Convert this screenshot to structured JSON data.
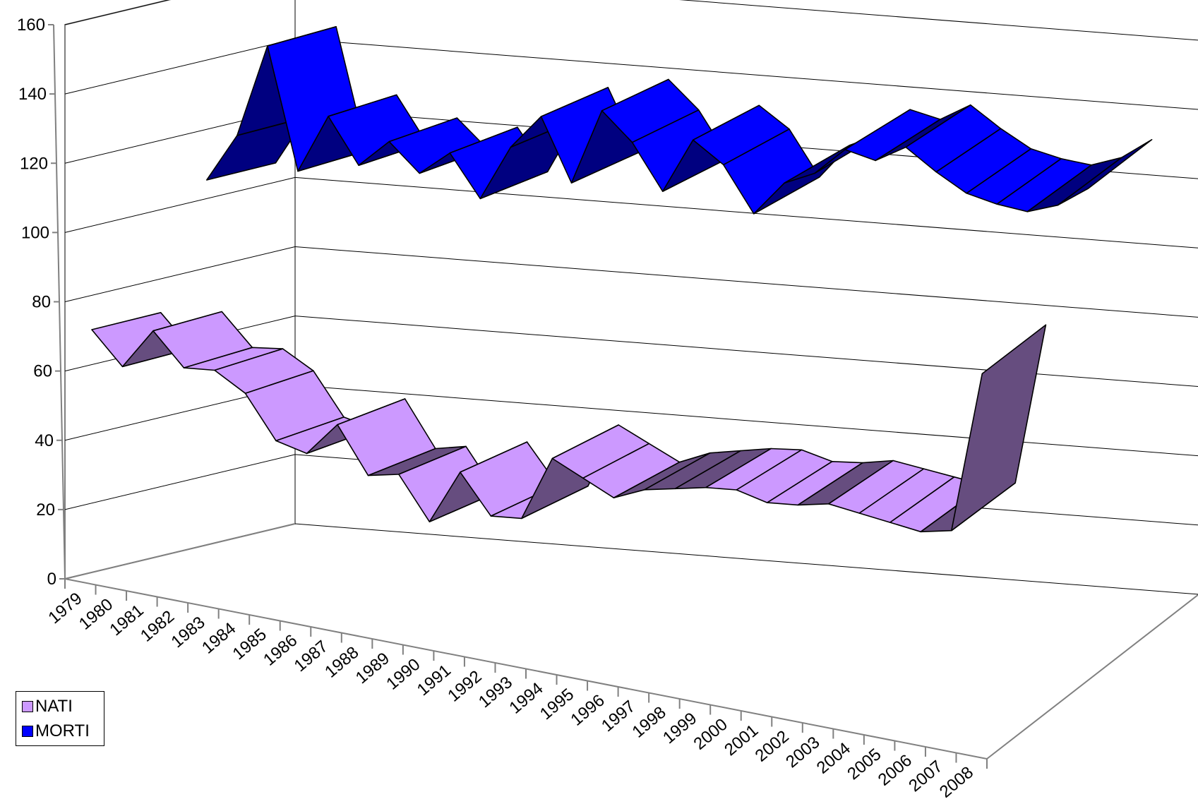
{
  "chart_data": {
    "type": "area",
    "style": "3d-ribbon-line",
    "title": "",
    "xlabel": "",
    "ylabel": "",
    "categories": [
      "1979",
      "1980",
      "1981",
      "1982",
      "1983",
      "1984",
      "1985",
      "1986",
      "1987",
      "1988",
      "1989",
      "1990",
      "1991",
      "1992",
      "1993",
      "1994",
      "1995",
      "1996",
      "1997",
      "1998",
      "1999",
      "2000",
      "2001",
      "2002",
      "2003",
      "2004",
      "2005",
      "2006",
      "2007",
      "2008"
    ],
    "series": [
      {
        "name": "NATI",
        "color_top": "#cc99ff",
        "color_side": "#664d7f",
        "values": [
          72,
          63,
          75,
          66,
          67,
          62,
          50,
          48,
          58,
          45,
          47,
          35,
          51,
          40,
          41,
          60,
          56,
          52,
          56,
          58,
          60,
          61,
          59,
          60,
          62,
          61,
          60,
          59,
          61,
          108
        ]
      },
      {
        "name": "MORTI",
        "color_top": "#0000ff",
        "color_side": "#000080",
        "values": [
          107,
          121,
          148,
          113,
          130,
          117,
          125,
          117,
          124,
          112,
          128,
          138,
          120,
          142,
          134,
          121,
          137,
          131,
          118,
          128,
          132,
          140,
          138,
          143,
          137,
          132,
          130,
          129,
          132,
          138
        ]
      }
    ],
    "yticks": [
      "0",
      "20",
      "40",
      "60",
      "80",
      "100",
      "120",
      "140",
      "160"
    ],
    "ylim": [
      0,
      160
    ],
    "grid": true,
    "legend_position": "bottom-left"
  }
}
